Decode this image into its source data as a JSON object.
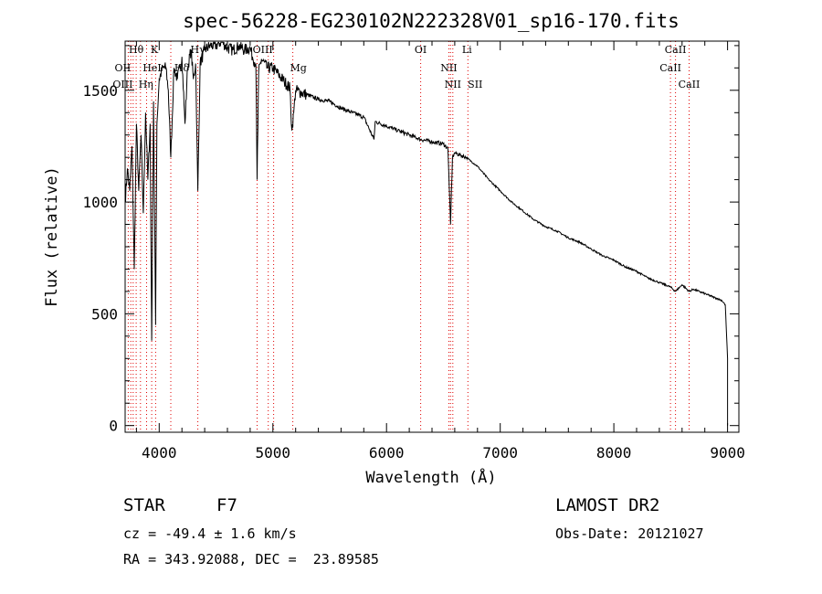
{
  "chart_data": {
    "type": "line",
    "title": "spec-56228-EG230102N222328V01_sp16-170.fits",
    "xlabel": "Wavelength (Å)",
    "ylabel": "Flux (relative)",
    "xlim": [
      3700,
      9100
    ],
    "ylim": [
      -30,
      1720
    ],
    "xticks": [
      4000,
      5000,
      6000,
      7000,
      8000,
      9000
    ],
    "yticks": [
      0,
      500,
      1000,
      1500
    ],
    "grid": false,
    "series": [
      {
        "x": [
          3700,
          3720,
          3740,
          3760,
          3780,
          3800,
          3820,
          3840,
          3860,
          3880,
          3900,
          3920,
          3934,
          3950,
          3968,
          3980,
          4000,
          4030,
          4060,
          4080,
          4102,
          4130,
          4160,
          4200,
          4226,
          4250,
          4280,
          4300,
          4320,
          4340,
          4360,
          4400,
          4450,
          4500,
          4550,
          4600,
          4650,
          4700,
          4750,
          4800,
          4820,
          4850,
          4861,
          4875,
          4900,
          4950,
          5000,
          5050,
          5100,
          5150,
          5167,
          5183,
          5200,
          5250,
          5300,
          5400,
          5500,
          5600,
          5700,
          5800,
          5890,
          5900,
          6000,
          6100,
          6200,
          6300,
          6400,
          6500,
          6540,
          6563,
          6580,
          6600,
          6650,
          6700,
          6750,
          6800,
          6900,
          7000,
          7100,
          7200,
          7300,
          7400,
          7500,
          7600,
          7700,
          7800,
          7900,
          8000,
          8100,
          8200,
          8300,
          8400,
          8498,
          8542,
          8600,
          8662,
          8700,
          8800,
          8900,
          8950,
          8980,
          9000
        ],
        "values": [
          1000,
          1150,
          1050,
          1250,
          700,
          1350,
          1050,
          1300,
          950,
          1400,
          1100,
          1350,
          380,
          1450,
          450,
          1350,
          1550,
          1600,
          1600,
          1500,
          1200,
          1600,
          1550,
          1650,
          1350,
          1600,
          1680,
          1550,
          1620,
          1050,
          1620,
          1680,
          1700,
          1700,
          1720,
          1690,
          1680,
          1700,
          1680,
          1690,
          1650,
          1620,
          1100,
          1580,
          1640,
          1600,
          1600,
          1570,
          1540,
          1510,
          1320,
          1400,
          1500,
          1490,
          1480,
          1460,
          1450,
          1420,
          1400,
          1380,
          1280,
          1360,
          1340,
          1320,
          1300,
          1280,
          1270,
          1260,
          1240,
          900,
          1200,
          1220,
          1210,
          1200,
          1180,
          1160,
          1100,
          1050,
          1000,
          960,
          920,
          890,
          870,
          840,
          820,
          790,
          760,
          740,
          710,
          690,
          660,
          640,
          620,
          600,
          630,
          600,
          610,
          590,
          570,
          560,
          540,
          300
        ]
      }
    ],
    "line_marks": [
      {
        "label": "Hθ",
        "wavelength": 3797
      },
      {
        "label": "K",
        "wavelength": 3934
      },
      {
        "label": "OII",
        "wavelength": 3727
      },
      {
        "label": "HeI",
        "wavelength": 3889
      },
      {
        "label": "Hδ",
        "wavelength": 4102
      },
      {
        "label": "OIII",
        "wavelength": 3727
      },
      {
        "label": "Hη",
        "wavelength": 3835
      },
      {
        "label": "Hγ",
        "wavelength": 4340
      },
      {
        "label": "OIII",
        "wavelength": 4959
      },
      {
        "label": "Mg",
        "wavelength": 5175
      },
      {
        "label": "OI",
        "wavelength": 6300
      },
      {
        "label": "Li",
        "wavelength": 6708
      },
      {
        "label": "NII",
        "wavelength": 6548
      },
      {
        "label": "NII",
        "wavelength": 6583
      },
      {
        "label": "SII",
        "wavelength": 6716
      },
      {
        "label": "CaII",
        "wavelength": 8542
      },
      {
        "label": "CaII",
        "wavelength": 8498
      },
      {
        "label": "CaII",
        "wavelength": 8662
      }
    ],
    "line_positions": [
      3727,
      3750,
      3771,
      3797,
      3835,
      3889,
      3934,
      3968,
      4102,
      4340,
      4861,
      4959,
      5007,
      5175,
      6300,
      6548,
      6563,
      6583,
      6716,
      8498,
      8542,
      8662
    ]
  },
  "footer": {
    "object_class": "STAR",
    "subclass": "F7",
    "survey": "LAMOST DR2",
    "cz": "cz = -49.4 ± 1.6 km/s",
    "obs_date": "Obs-Date: 20121027",
    "coords": "RA = 343.92088, DEC =  23.89585"
  },
  "colors": {
    "line_marker": "#e00000",
    "spectrum": "#000000"
  }
}
